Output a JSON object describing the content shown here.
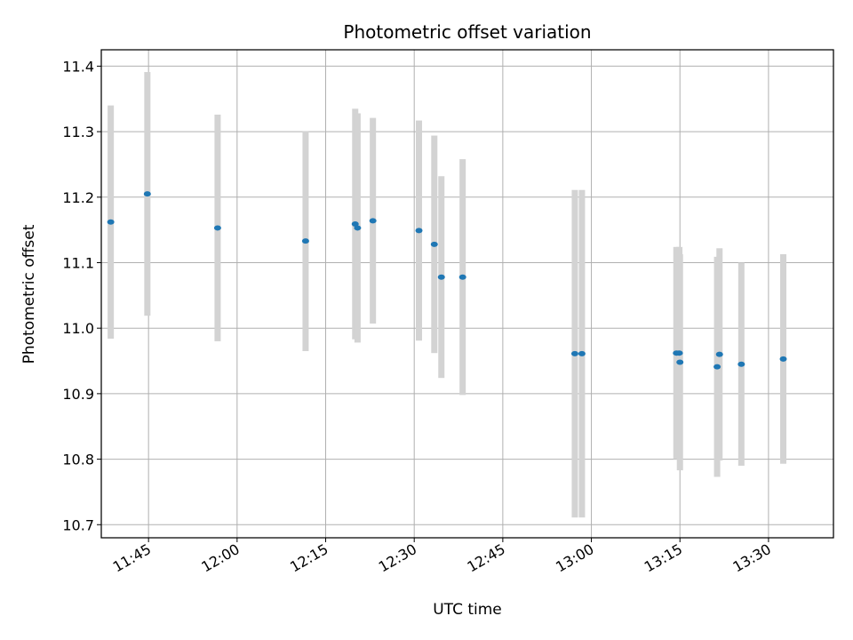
{
  "chart_data": {
    "type": "scatter",
    "title": "Photometric offset variation",
    "xlabel": "UTC time",
    "ylabel": "Photometric offset",
    "grid": true,
    "xlim": [
      "11:37",
      "13:41"
    ],
    "ylim": [
      10.68,
      11.425
    ],
    "x_ticks": [
      "11:45",
      "12:00",
      "12:15",
      "12:30",
      "12:45",
      "13:00",
      "13:15",
      "13:30"
    ],
    "y_ticks": [
      10.7,
      10.8,
      10.9,
      11.0,
      11.1,
      11.2,
      11.3,
      11.4
    ],
    "y_tick_labels": [
      "10.7",
      "10.8",
      "10.9",
      "11.0",
      "11.1",
      "11.2",
      "11.3",
      "11.4"
    ],
    "colors": {
      "marker": "#1f77b4",
      "errorbar": "#d3d3d3"
    },
    "points": [
      {
        "x": "11:38:36",
        "y": 11.162,
        "err": 0.178
      },
      {
        "x": "11:44:48",
        "y": 11.205,
        "err": 0.186
      },
      {
        "x": "11:56:42",
        "y": 11.153,
        "err": 0.173
      },
      {
        "x": "12:11:36",
        "y": 11.133,
        "err": 0.168
      },
      {
        "x": "12:20:00",
        "y": 11.159,
        "err": 0.176
      },
      {
        "x": "12:20:24",
        "y": 11.153,
        "err": 0.175
      },
      {
        "x": "12:23:00",
        "y": 11.164,
        "err": 0.157
      },
      {
        "x": "12:30:48",
        "y": 11.149,
        "err": 0.168
      },
      {
        "x": "12:33:24",
        "y": 11.128,
        "err": 0.166
      },
      {
        "x": "12:34:36",
        "y": 11.078,
        "err": 0.154
      },
      {
        "x": "12:38:12",
        "y": 11.078,
        "err": 0.18
      },
      {
        "x": "12:57:12",
        "y": 10.961,
        "err": 0.25
      },
      {
        "x": "12:58:24",
        "y": 10.961,
        "err": 0.25
      },
      {
        "x": "13:14:24",
        "y": 10.962,
        "err": 0.162
      },
      {
        "x": "13:14:54",
        "y": 10.962,
        "err": 0.162
      },
      {
        "x": "13:15:00",
        "y": 10.948,
        "err": 0.165
      },
      {
        "x": "13:21:18",
        "y": 10.941,
        "err": 0.168
      },
      {
        "x": "13:21:42",
        "y": 10.96,
        "err": 0.162
      },
      {
        "x": "13:25:24",
        "y": 10.945,
        "err": 0.155
      },
      {
        "x": "13:32:30",
        "y": 10.953,
        "err": 0.16
      }
    ]
  }
}
